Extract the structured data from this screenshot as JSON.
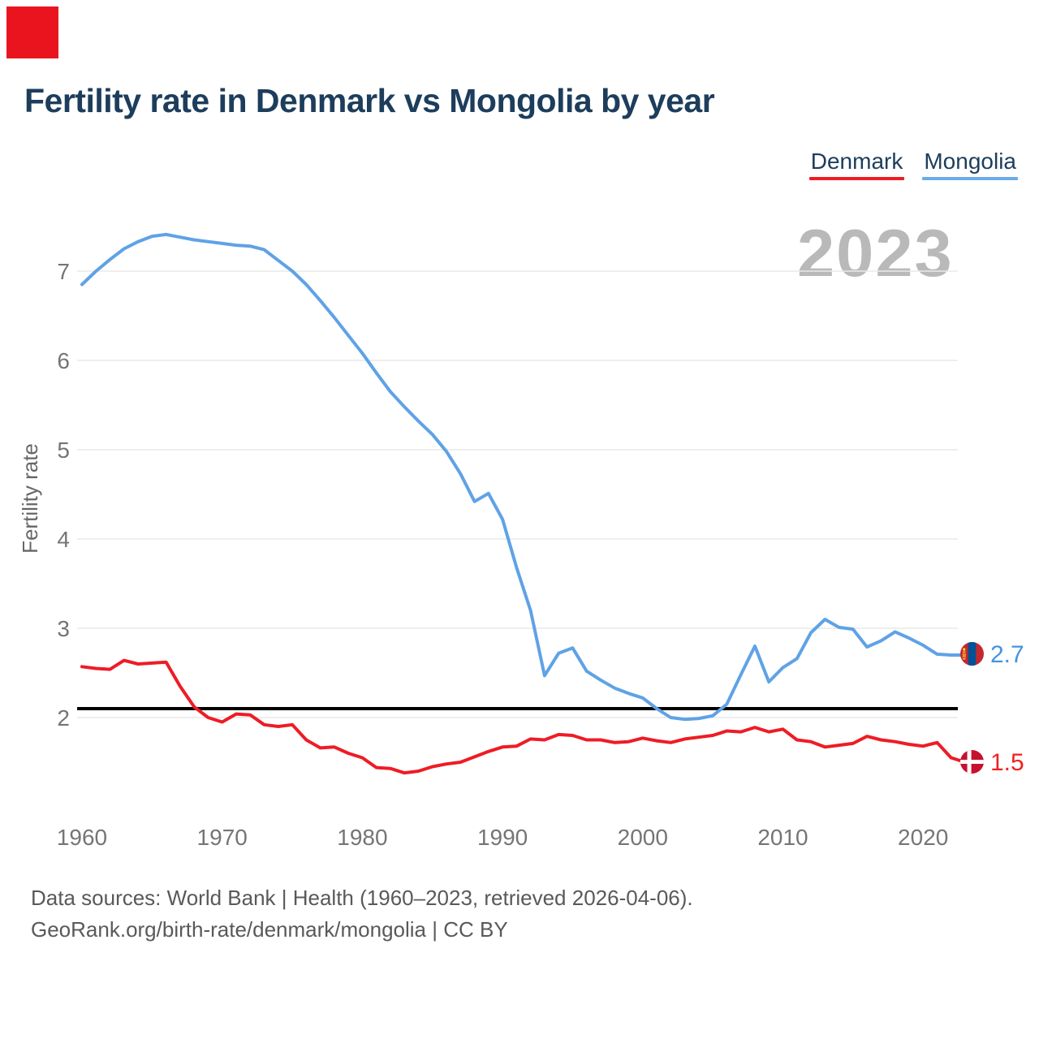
{
  "page": {
    "title": "Fertility rate in Denmark vs Mongolia by year",
    "watermark_year": "2023",
    "footer": {
      "line1": "Data sources: World Bank | Health (1960–2023, retrieved 2026-04-06).",
      "line2": "GeoRank.org/birth-rate/denmark/mongolia | CC BY"
    },
    "corner_marker_color": "#e9141d"
  },
  "legend": {
    "items": [
      {
        "label": "Denmark",
        "color": "#ee1c25"
      },
      {
        "label": "Mongolia",
        "color": "#6cabe9"
      }
    ]
  },
  "end_labels": {
    "mongolia": {
      "value": "2.7",
      "text_color": "#4493e2",
      "flag": "mongolia-flag"
    },
    "denmark": {
      "value": "1.5",
      "text_color": "#ee2222",
      "flag": "denmark-flag"
    }
  },
  "flag_colors": {
    "denmark": {
      "field": "#c8102e",
      "cross": "#ffffff"
    },
    "mongolia": {
      "red": "#c4272f",
      "blue": "#015197",
      "soyombo": "#ffd633"
    }
  },
  "chart_data": {
    "type": "line",
    "title": "Fertility rate in Denmark vs Mongolia by year",
    "xlabel": "",
    "ylabel": "Fertility rate",
    "x_ticks": [
      1960,
      1970,
      1980,
      1990,
      2000,
      2010,
      2020
    ],
    "y_ticks": [
      7,
      6,
      5,
      4,
      3,
      2
    ],
    "xlim": [
      1960,
      2023
    ],
    "ylim": [
      1.3,
      7.6
    ],
    "grid": "horizontal",
    "legend_position": "top-right",
    "replacement_line": {
      "value": 2.1,
      "color": "#000000"
    },
    "years": [
      1960,
      1961,
      1962,
      1963,
      1964,
      1965,
      1966,
      1967,
      1968,
      1969,
      1970,
      1971,
      1972,
      1973,
      1974,
      1975,
      1976,
      1977,
      1978,
      1979,
      1980,
      1981,
      1982,
      1983,
      1984,
      1985,
      1986,
      1987,
      1988,
      1989,
      1990,
      1991,
      1992,
      1993,
      1994,
      1995,
      1996,
      1997,
      1998,
      1999,
      2000,
      2001,
      2002,
      2003,
      2004,
      2005,
      2006,
      2007,
      2008,
      2009,
      2010,
      2011,
      2012,
      2013,
      2014,
      2015,
      2016,
      2017,
      2018,
      2019,
      2020,
      2021,
      2022,
      2023
    ],
    "series": [
      {
        "name": "Denmark",
        "color": "#ee1c25",
        "end_value": 1.5,
        "values": [
          2.57,
          2.55,
          2.54,
          2.64,
          2.6,
          2.61,
          2.62,
          2.35,
          2.12,
          2.0,
          1.95,
          2.04,
          2.03,
          1.92,
          1.9,
          1.92,
          1.75,
          1.66,
          1.67,
          1.6,
          1.55,
          1.44,
          1.43,
          1.38,
          1.4,
          1.45,
          1.48,
          1.5,
          1.56,
          1.62,
          1.67,
          1.68,
          1.76,
          1.75,
          1.81,
          1.8,
          1.75,
          1.75,
          1.72,
          1.73,
          1.77,
          1.74,
          1.72,
          1.76,
          1.78,
          1.8,
          1.85,
          1.84,
          1.89,
          1.84,
          1.87,
          1.75,
          1.73,
          1.67,
          1.69,
          1.71,
          1.79,
          1.75,
          1.73,
          1.7,
          1.68,
          1.72,
          1.55,
          1.5
        ]
      },
      {
        "name": "Mongolia",
        "color": "#5fa2e6",
        "end_value": 2.7,
        "values": [
          6.85,
          7.0,
          7.13,
          7.25,
          7.33,
          7.39,
          7.41,
          7.38,
          7.35,
          7.33,
          7.31,
          7.29,
          7.28,
          7.24,
          7.12,
          7.0,
          6.85,
          6.67,
          6.48,
          6.28,
          6.08,
          5.86,
          5.65,
          5.48,
          5.32,
          5.17,
          4.98,
          4.73,
          4.42,
          4.51,
          4.22,
          3.68,
          3.2,
          2.47,
          2.72,
          2.78,
          2.52,
          2.42,
          2.33,
          2.27,
          2.22,
          2.1,
          2.0,
          1.98,
          1.99,
          2.02,
          2.15,
          2.48,
          2.8,
          2.4,
          2.56,
          2.66,
          2.95,
          3.1,
          3.01,
          2.99,
          2.79,
          2.86,
          2.96,
          2.89,
          2.81,
          2.71,
          2.7,
          2.7
        ]
      }
    ]
  }
}
